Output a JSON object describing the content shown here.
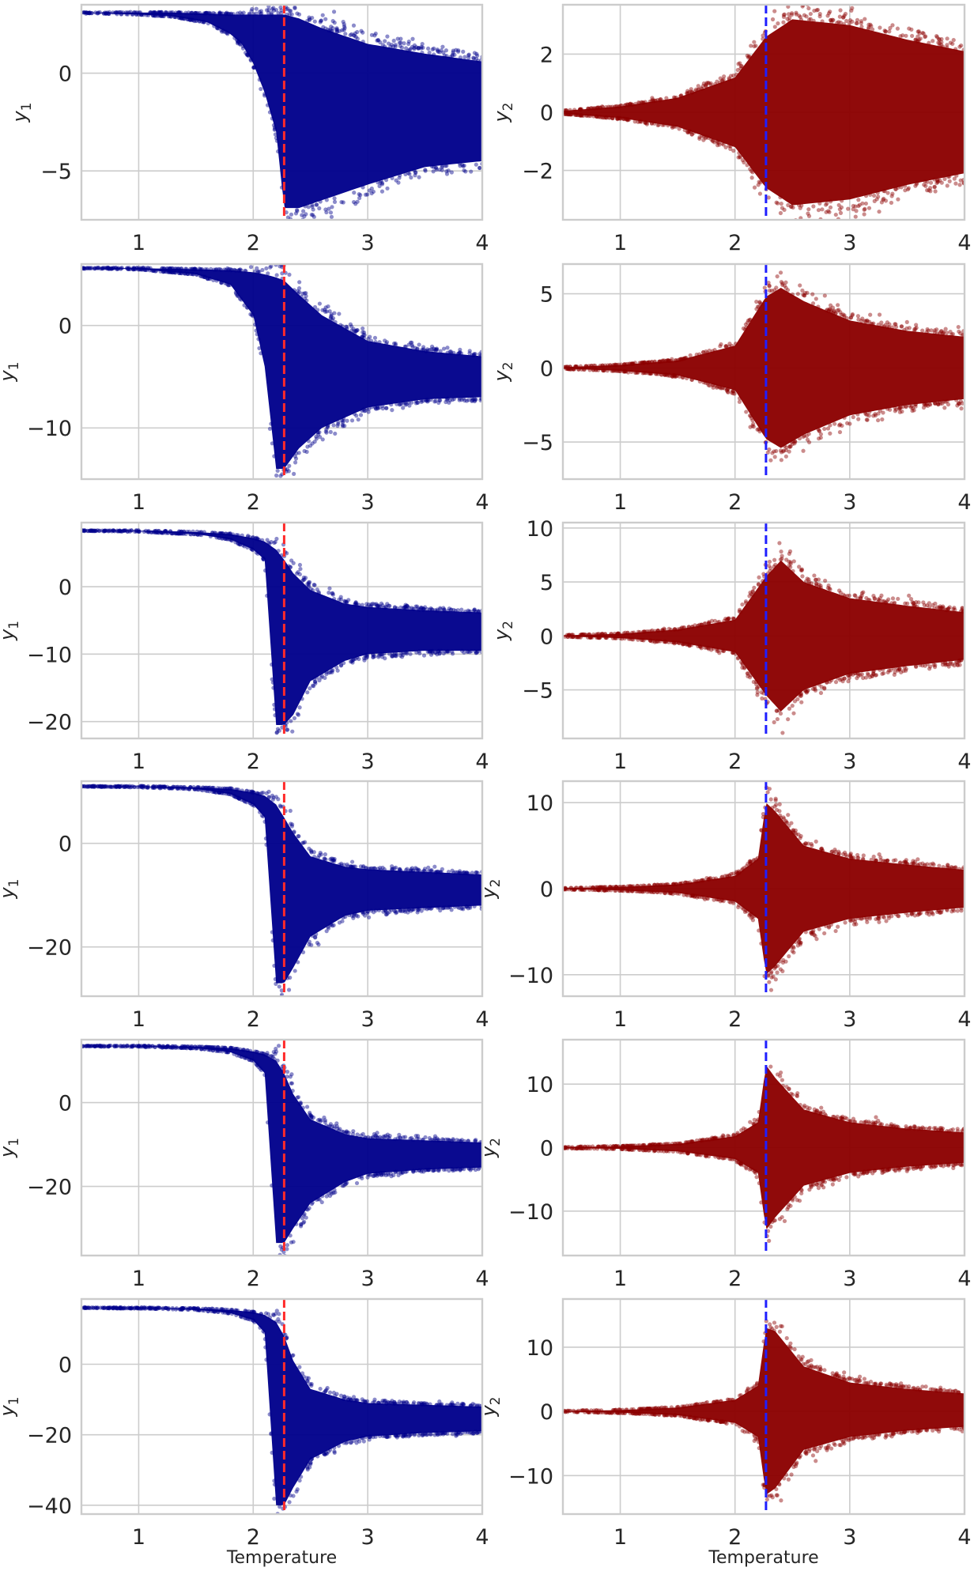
{
  "figure": {
    "xlabel": "Temperature",
    "x_ticks": [
      1,
      2,
      3,
      4
    ],
    "xlim": [
      0.5,
      4.0
    ],
    "critical_temperature": 2.27,
    "colors": {
      "y1_points": "#00008b",
      "y2_points": "#8b0000",
      "y1_marker": "#ff2a2a",
      "y2_marker": "#1f1fff",
      "grid": "#cccccc",
      "frame": "#cccccc"
    }
  },
  "chart_data": [
    {
      "type": "scatter",
      "row": 1,
      "col": 1,
      "ylabel": "y",
      "ylabel_subscript": "1",
      "ylim": [
        -7.5,
        3.5
      ],
      "yticks": [
        0,
        -5
      ],
      "ytick_labels": [
        "0",
        "−5"
      ],
      "vline_x": 2.27,
      "envelope": {
        "t": [
          0.5,
          1.0,
          1.3,
          1.6,
          1.8,
          1.9,
          2.0,
          2.1,
          2.2,
          2.27,
          2.4,
          2.6,
          3.0,
          3.5,
          4.0
        ],
        "upper": [
          3.1,
          3.1,
          3.1,
          3.05,
          3.0,
          3.0,
          3.0,
          3.0,
          3.0,
          3.0,
          2.8,
          2.3,
          1.5,
          1.0,
          0.6
        ],
        "lower": [
          3.1,
          3.0,
          2.9,
          2.6,
          2.0,
          1.5,
          0.5,
          -1.0,
          -3.0,
          -6.9,
          -6.9,
          -6.5,
          -5.7,
          -4.8,
          -4.5
        ]
      }
    },
    {
      "type": "scatter",
      "row": 1,
      "col": 2,
      "ylabel": "y",
      "ylabel_subscript": "2",
      "ylim": [
        -3.7,
        3.7
      ],
      "yticks": [
        2,
        0,
        -2
      ],
      "ytick_labels": [
        "2",
        "0",
        "−2"
      ],
      "vline_x": 2.27,
      "envelope": {
        "t": [
          0.5,
          1.0,
          1.5,
          2.0,
          2.27,
          2.5,
          3.0,
          3.5,
          4.0
        ],
        "upper": [
          0.05,
          0.2,
          0.5,
          1.2,
          2.6,
          3.2,
          3.0,
          2.5,
          2.1
        ],
        "lower": [
          -0.05,
          -0.2,
          -0.5,
          -1.2,
          -2.6,
          -3.2,
          -3.0,
          -2.5,
          -2.1
        ]
      }
    },
    {
      "type": "scatter",
      "row": 2,
      "col": 1,
      "ylabel": "y",
      "ylabel_subscript": "1",
      "ylim": [
        -15,
        6
      ],
      "yticks": [
        0,
        -10
      ],
      "ytick_labels": [
        "0",
        "−10"
      ],
      "vline_x": 2.27,
      "envelope": {
        "t": [
          0.5,
          1.0,
          1.5,
          1.8,
          2.0,
          2.1,
          2.2,
          2.27,
          2.4,
          2.6,
          3.0,
          3.5,
          4.0
        ],
        "upper": [
          5.6,
          5.6,
          5.5,
          5.4,
          5.2,
          5.0,
          4.7,
          4.4,
          3.0,
          1.0,
          -1.5,
          -2.5,
          -3.0
        ],
        "lower": [
          5.6,
          5.5,
          5.0,
          4.0,
          1.0,
          -4.0,
          -14.0,
          -14.0,
          -12.0,
          -10.0,
          -8.0,
          -7.2,
          -7.0
        ]
      }
    },
    {
      "type": "scatter",
      "row": 2,
      "col": 2,
      "ylabel": "y",
      "ylabel_subscript": "2",
      "ylim": [
        -7.5,
        7.0
      ],
      "yticks": [
        5,
        0,
        -5
      ],
      "ytick_labels": [
        "5",
        "0",
        "−5"
      ],
      "vline_x": 2.27,
      "envelope": {
        "t": [
          0.5,
          1.0,
          1.5,
          2.0,
          2.27,
          2.4,
          2.6,
          3.0,
          3.5,
          4.0
        ],
        "upper": [
          0.05,
          0.2,
          0.5,
          1.5,
          4.8,
          5.4,
          4.5,
          3.2,
          2.5,
          2.1
        ],
        "lower": [
          -0.05,
          -0.2,
          -0.5,
          -1.5,
          -4.8,
          -5.4,
          -4.5,
          -3.2,
          -2.5,
          -2.1
        ]
      }
    },
    {
      "type": "scatter",
      "row": 3,
      "col": 1,
      "ylabel": "y",
      "ylabel_subscript": "1",
      "ylim": [
        -22.5,
        9.5
      ],
      "yticks": [
        0,
        -10,
        -20
      ],
      "ytick_labels": [
        "0",
        "−10",
        "−20"
      ],
      "vline_x": 2.27,
      "envelope": {
        "t": [
          0.5,
          1.0,
          1.5,
          1.8,
          2.0,
          2.1,
          2.2,
          2.27,
          2.35,
          2.5,
          2.8,
          3.0,
          3.5,
          4.0
        ],
        "upper": [
          8.3,
          8.3,
          8.1,
          7.8,
          7.2,
          6.7,
          5.5,
          4.0,
          2.0,
          -0.5,
          -2.5,
          -3.0,
          -3.5,
          -3.8
        ],
        "lower": [
          8.3,
          8.2,
          7.8,
          7.0,
          5.5,
          4.0,
          -20.5,
          -20.5,
          -19.0,
          -14.0,
          -11.0,
          -10.0,
          -9.5,
          -9.5
        ]
      }
    },
    {
      "type": "scatter",
      "row": 3,
      "col": 2,
      "ylabel": "y",
      "ylabel_subscript": "2",
      "ylim": [
        -9.5,
        10.5
      ],
      "yticks": [
        10,
        5,
        0,
        -5
      ],
      "ytick_labels": [
        "10",
        "5",
        "0",
        "−5"
      ],
      "vline_x": 2.27,
      "envelope": {
        "t": [
          0.5,
          1.0,
          1.5,
          2.0,
          2.27,
          2.4,
          2.6,
          3.0,
          3.5,
          4.0
        ],
        "upper": [
          0.05,
          0.2,
          0.6,
          1.5,
          5.5,
          7.0,
          5.0,
          3.5,
          2.8,
          2.2
        ],
        "lower": [
          -0.05,
          -0.2,
          -0.6,
          -1.5,
          -5.5,
          -7.0,
          -5.0,
          -3.5,
          -2.8,
          -2.2
        ]
      }
    },
    {
      "type": "scatter",
      "row": 4,
      "col": 1,
      "ylabel": "y",
      "ylabel_subscript": "1",
      "ylim": [
        -29.5,
        12.0
      ],
      "yticks": [
        0,
        -20
      ],
      "ytick_labels": [
        "0",
        "−20"
      ],
      "vline_x": 2.27,
      "envelope": {
        "t": [
          0.5,
          1.0,
          1.5,
          1.8,
          2.0,
          2.1,
          2.2,
          2.27,
          2.35,
          2.5,
          2.8,
          3.0,
          3.5,
          4.0
        ],
        "upper": [
          11.0,
          11.0,
          10.8,
          10.5,
          9.8,
          9.2,
          7.5,
          5.0,
          2.0,
          -2.5,
          -4.5,
          -5.0,
          -5.5,
          -6.0
        ],
        "lower": [
          11.0,
          10.9,
          10.5,
          9.5,
          7.5,
          5.0,
          -27.0,
          -27.0,
          -24.0,
          -18.0,
          -14.0,
          -13.0,
          -12.5,
          -12.0
        ]
      }
    },
    {
      "type": "scatter",
      "row": 4,
      "col": 2,
      "ylabel": "y",
      "ylabel_subscript": "2",
      "ylim": [
        -12.5,
        12.5
      ],
      "yticks": [
        10,
        0,
        -10
      ],
      "ytick_labels": [
        "10",
        "0",
        "−10"
      ],
      "vline_x": 2.27,
      "envelope": {
        "t": [
          0.5,
          1.0,
          1.5,
          2.0,
          2.2,
          2.27,
          2.35,
          2.6,
          3.0,
          3.5,
          4.0
        ],
        "upper": [
          0.05,
          0.2,
          0.5,
          1.5,
          3.5,
          10.0,
          9.0,
          5.0,
          3.5,
          2.8,
          2.2
        ],
        "lower": [
          -0.05,
          -0.2,
          -0.5,
          -1.5,
          -3.5,
          -10.0,
          -9.0,
          -5.0,
          -3.5,
          -2.8,
          -2.2
        ]
      }
    },
    {
      "type": "scatter",
      "row": 5,
      "col": 1,
      "ylabel": "y",
      "ylabel_subscript": "1",
      "ylim": [
        -36.5,
        15.0
      ],
      "yticks": [
        0,
        -20
      ],
      "ytick_labels": [
        "0",
        "−20"
      ],
      "vline_x": 2.27,
      "envelope": {
        "t": [
          0.5,
          1.0,
          1.5,
          1.8,
          2.0,
          2.1,
          2.2,
          2.27,
          2.35,
          2.5,
          2.8,
          3.0,
          3.5,
          4.0
        ],
        "upper": [
          13.5,
          13.5,
          13.3,
          13.0,
          12.2,
          11.5,
          10.0,
          7.0,
          2.0,
          -4.0,
          -7.5,
          -8.5,
          -9.0,
          -9.5
        ],
        "lower": [
          13.5,
          13.4,
          13.0,
          12.0,
          10.0,
          7.0,
          -33.5,
          -33.5,
          -30.0,
          -24.0,
          -19.0,
          -17.0,
          -16.0,
          -15.5
        ]
      }
    },
    {
      "type": "scatter",
      "row": 5,
      "col": 2,
      "ylabel": "y",
      "ylabel_subscript": "2",
      "ylim": [
        -17.0,
        17.0
      ],
      "yticks": [
        10,
        0,
        -10
      ],
      "ytick_labels": [
        "10",
        "0",
        "−10"
      ],
      "vline_x": 2.27,
      "envelope": {
        "t": [
          0.5,
          1.0,
          1.5,
          2.0,
          2.2,
          2.27,
          2.35,
          2.6,
          3.0,
          3.5,
          4.0
        ],
        "upper": [
          0.05,
          0.2,
          0.6,
          1.8,
          4.0,
          13.0,
          11.0,
          6.0,
          4.0,
          3.0,
          2.4
        ],
        "lower": [
          -0.05,
          -0.2,
          -0.6,
          -1.8,
          -4.0,
          -13.0,
          -11.0,
          -6.0,
          -4.0,
          -3.0,
          -2.4
        ]
      }
    },
    {
      "type": "scatter",
      "row": 6,
      "col": 1,
      "ylabel": "y",
      "ylabel_subscript": "1",
      "ylim": [
        -42.5,
        18.5
      ],
      "yticks": [
        0,
        -20,
        -40
      ],
      "ytick_labels": [
        "0",
        "−20",
        "−40"
      ],
      "vline_x": 2.27,
      "envelope": {
        "t": [
          0.5,
          1.0,
          1.5,
          1.8,
          2.0,
          2.1,
          2.2,
          2.27,
          2.35,
          2.5,
          2.8,
          3.0,
          3.5,
          4.0
        ],
        "upper": [
          16.0,
          16.0,
          15.8,
          15.4,
          14.8,
          14.0,
          12.0,
          8.0,
          1.0,
          -7.0,
          -10.0,
          -11.0,
          -11.5,
          -12.0
        ],
        "lower": [
          16.0,
          15.9,
          15.5,
          14.5,
          12.5,
          9.0,
          -40.0,
          -40.0,
          -35.0,
          -27.0,
          -22.0,
          -20.5,
          -19.5,
          -19.0
        ]
      }
    },
    {
      "type": "scatter",
      "row": 6,
      "col": 2,
      "ylabel": "y",
      "ylabel_subscript": "2",
      "ylim": [
        -16.0,
        17.5
      ],
      "yticks": [
        10,
        0,
        -10
      ],
      "ytick_labels": [
        "10",
        "0",
        "−10"
      ],
      "vline_x": 2.27,
      "envelope": {
        "t": [
          0.5,
          1.0,
          1.5,
          2.0,
          2.2,
          2.27,
          2.35,
          2.6,
          3.0,
          3.5,
          4.0
        ],
        "upper": [
          0.05,
          0.2,
          0.6,
          1.8,
          4.0,
          13.0,
          12.5,
          7.0,
          4.5,
          3.5,
          2.8
        ],
        "lower": [
          -0.05,
          -0.2,
          -0.6,
          -1.8,
          -4.0,
          -13.0,
          -12.0,
          -6.0,
          -4.0,
          -3.0,
          -2.4
        ]
      }
    }
  ]
}
